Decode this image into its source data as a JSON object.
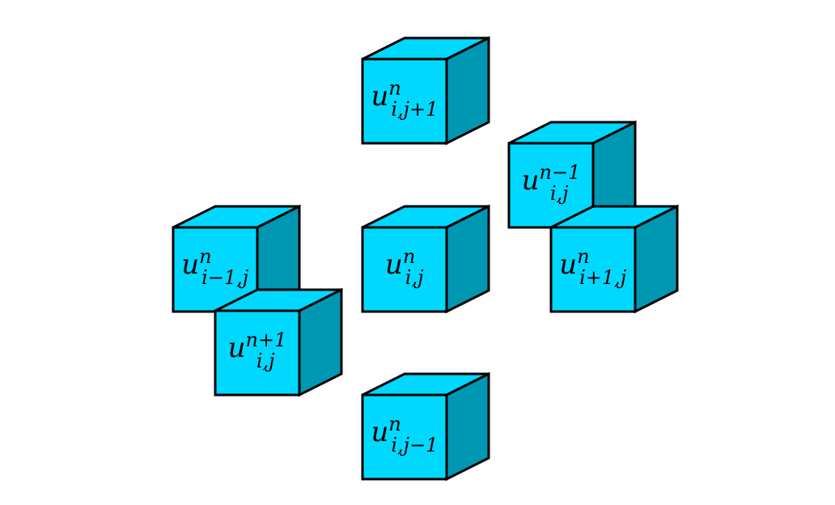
{
  "colors": {
    "front": "#00D8FF",
    "top": "#00D8FF",
    "side": "#0097B2",
    "stroke": "#000000",
    "background": "#FFFFFF"
  },
  "cells": [
    {
      "id": "cell-i-jp1",
      "base": "u",
      "sup": "n",
      "sub": "i,j+1"
    },
    {
      "id": "cell-i-j-nm1",
      "base": "u",
      "sup": "n−1",
      "sub": "i,j"
    },
    {
      "id": "cell-im1-j",
      "base": "u",
      "sup": "n",
      "sub": "i−1,j"
    },
    {
      "id": "cell-i-j",
      "base": "u",
      "sup": "n",
      "sub": "i,j"
    },
    {
      "id": "cell-ip1-j",
      "base": "u",
      "sup": "n",
      "sub": "i+1,j"
    },
    {
      "id": "cell-i-j-np1",
      "base": "u",
      "sup": "n+1",
      "sub": "i,j"
    },
    {
      "id": "cell-i-jm1",
      "base": "u",
      "sup": "n",
      "sub": "i,j−1"
    }
  ]
}
